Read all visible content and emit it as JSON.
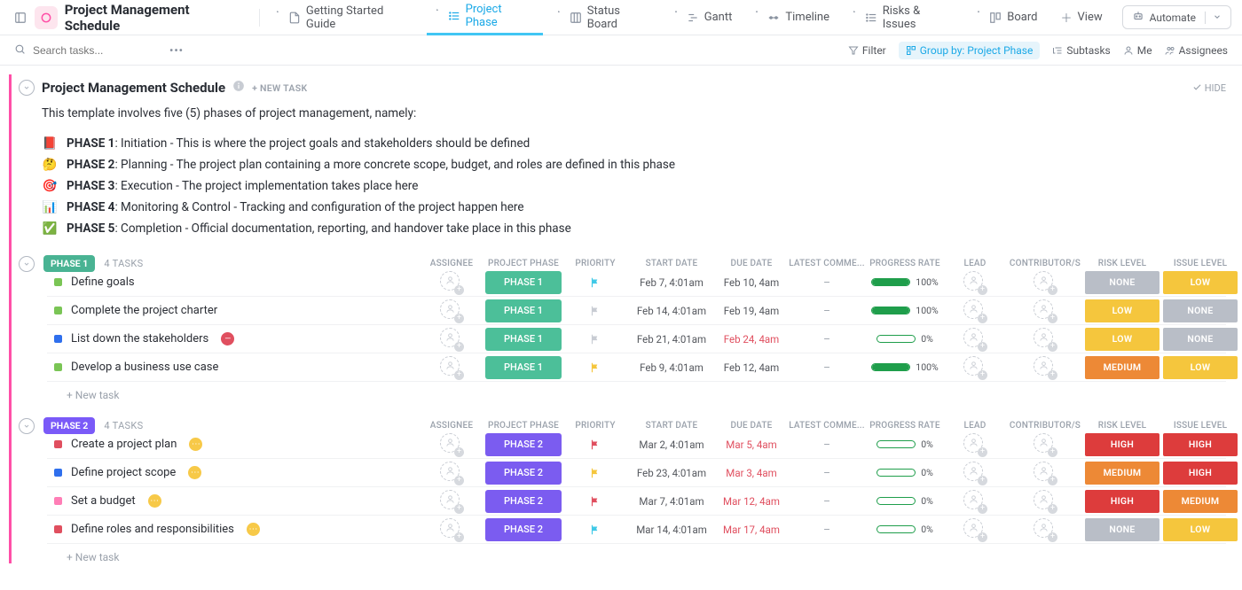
{
  "toolbar": {
    "title": "Project Management Schedule",
    "tabs": [
      {
        "label": "Getting Started Guide",
        "icon": "doc"
      },
      {
        "label": "Project Phase",
        "icon": "list",
        "active": true
      },
      {
        "label": "Status Board",
        "icon": "board"
      },
      {
        "label": "Gantt",
        "icon": "gantt"
      },
      {
        "label": "Timeline",
        "icon": "timeline"
      },
      {
        "label": "Risks & Issues",
        "icon": "list"
      },
      {
        "label": "Board",
        "icon": "board2"
      }
    ],
    "add_view_label": "View",
    "automate_label": "Automate"
  },
  "filterbar": {
    "search_placeholder": "Search tasks...",
    "filter_label": "Filter",
    "groupby_label": "Group by: Project Phase",
    "subtasks_label": "Subtasks",
    "me_label": "Me",
    "assignees_label": "Assignees",
    "hide_label": "HIDE"
  },
  "header": {
    "title": "Project Management Schedule",
    "new_task_label": "+ NEW TASK",
    "description": "This template involves five (5) phases of project management, namely:",
    "phases": [
      {
        "emoji": "📕",
        "name": "PHASE 1",
        "text": ": Initiation - This is where the project goals and stakeholders should be defined"
      },
      {
        "emoji": "🤔",
        "name": "PHASE 2",
        "text": ": Planning - The project plan containing a more concrete scope, budget, and roles are defined in this phase"
      },
      {
        "emoji": "🎯",
        "name": "PHASE 3",
        "text": ": Execution - The project implementation takes place here"
      },
      {
        "emoji": "📊",
        "name": "PHASE 4",
        "text": ": Monitoring & Control - Tracking and configuration of the project happen here"
      },
      {
        "emoji": "✅",
        "name": "PHASE 5",
        "text": ": Completion - Official documentation, reporting, and handover take place in this phase"
      }
    ]
  },
  "columns": [
    "ASSIGNEE",
    "PROJECT PHASE",
    "PRIORITY",
    "START DATE",
    "DUE DATE",
    "LATEST COMME...",
    "PROGRESS RATE",
    "LEAD",
    "CONTRIBUTOR/S",
    "RISK LEVEL",
    "ISSUE LEVEL"
  ],
  "new_task_row": "+ New task",
  "colors": {
    "phase1_badge": "#49b393",
    "phase1_pill": "#4cbf99",
    "phase2_badge": "#7a5af8",
    "phase2_pill": "#7b5cf0",
    "risk_none": "#b9bec7",
    "risk_low": "#f5c63d",
    "risk_medium": "#ed8936",
    "risk_high": "#dd3c3c",
    "progress_full": "#1f9e4b",
    "progress_empty": "#1f9e4b",
    "flag_cyan": "#40c9e7",
    "flag_grey": "#c8ccd3",
    "flag_yellow": "#f5c63d",
    "flag_red": "#e04f5f"
  },
  "groups": [
    {
      "badge": "PHASE 1",
      "badge_color": "#49b393",
      "count": "4 TASKS",
      "tasks": [
        {
          "sq": "#7ac555",
          "name": "Define goals",
          "phase": "PHASE 1",
          "phase_color": "#4cbf99",
          "flag": "#40c9e7",
          "start": "Feb 7, 4:01am",
          "due": "Feb 10, 4am",
          "overdue": false,
          "progress": 100,
          "risk": "NONE",
          "risk_c": "#b9bec7",
          "issue": "LOW",
          "issue_c": "#f5c63d",
          "extra": ""
        },
        {
          "sq": "#7ac555",
          "name": "Complete the project charter",
          "phase": "PHASE 1",
          "phase_color": "#4cbf99",
          "flag": "#c8ccd3",
          "start": "Feb 14, 4:01am",
          "due": "Feb 19, 4am",
          "overdue": false,
          "progress": 100,
          "risk": "LOW",
          "risk_c": "#f5c63d",
          "issue": "NONE",
          "issue_c": "#b9bec7",
          "extra": ""
        },
        {
          "sq": "#2f6fed",
          "name": "List down the stakeholders",
          "phase": "PHASE 1",
          "phase_color": "#4cbf99",
          "flag": "#c8ccd3",
          "start": "Feb 21, 4:01am",
          "due": "Feb 24, 4am",
          "overdue": true,
          "progress": 0,
          "risk": "LOW",
          "risk_c": "#f5c63d",
          "issue": "NONE",
          "issue_c": "#b9bec7",
          "extra": "block"
        },
        {
          "sq": "#7ac555",
          "name": "Develop a business use case",
          "phase": "PHASE 1",
          "phase_color": "#4cbf99",
          "flag": "#f5c63d",
          "start": "Feb 9, 4:01am",
          "due": "Feb 12, 4am",
          "overdue": false,
          "progress": 100,
          "risk": "MEDIUM",
          "risk_c": "#ed8936",
          "issue": "LOW",
          "issue_c": "#f5c63d",
          "extra": ""
        }
      ]
    },
    {
      "badge": "PHASE 2",
      "badge_color": "#7a5af8",
      "count": "4 TASKS",
      "tasks": [
        {
          "sq": "#e04f5f",
          "name": "Create a project plan",
          "phase": "PHASE 2",
          "phase_color": "#7b5cf0",
          "flag": "#e04f5f",
          "start": "Mar 2, 4:01am",
          "due": "Mar 5, 4am",
          "overdue": true,
          "progress": 0,
          "risk": "HIGH",
          "risk_c": "#dd3c3c",
          "issue": "HIGH",
          "issue_c": "#dd3c3c",
          "extra": "pending"
        },
        {
          "sq": "#2f6fed",
          "name": "Define project scope",
          "phase": "PHASE 2",
          "phase_color": "#7b5cf0",
          "flag": "#f5c63d",
          "start": "Feb 23, 4:01am",
          "due": "Mar 3, 4am",
          "overdue": true,
          "progress": 0,
          "risk": "MEDIUM",
          "risk_c": "#ed8936",
          "issue": "HIGH",
          "issue_c": "#dd3c3c",
          "extra": "pending"
        },
        {
          "sq": "#ff7eb6",
          "name": "Set a budget",
          "phase": "PHASE 2",
          "phase_color": "#7b5cf0",
          "flag": "#e04f5f",
          "start": "Mar 7, 4:01am",
          "due": "Mar 12, 4am",
          "overdue": true,
          "progress": 0,
          "risk": "HIGH",
          "risk_c": "#dd3c3c",
          "issue": "MEDIUM",
          "issue_c": "#ed8936",
          "extra": "pending"
        },
        {
          "sq": "#e04f5f",
          "name": "Define roles and responsibilities",
          "phase": "PHASE 2",
          "phase_color": "#7b5cf0",
          "flag": "#40c9e7",
          "start": "Mar 14, 4:01am",
          "due": "Mar 17, 4am",
          "overdue": true,
          "progress": 0,
          "risk": "NONE",
          "risk_c": "#b9bec7",
          "issue": "LOW",
          "issue_c": "#f5c63d",
          "extra": "pending"
        }
      ]
    }
  ]
}
